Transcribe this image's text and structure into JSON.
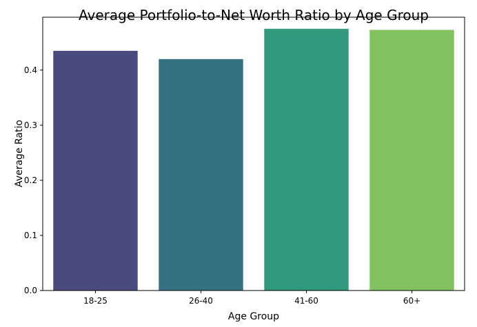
{
  "chart_data": {
    "type": "bar",
    "title": "Average Portfolio-to-Net Worth Ratio by Age Group",
    "xlabel": "Age Group",
    "ylabel": "Average Ratio",
    "categories": [
      "18-25",
      "26-40",
      "41-60",
      "60+"
    ],
    "values": [
      0.435,
      0.42,
      0.475,
      0.473
    ],
    "colors": [
      "#4a4a7e",
      "#357281",
      "#33997d",
      "#82c261"
    ],
    "ylim": [
      0,
      0.496
    ],
    "yticks": [
      0.0,
      0.1,
      0.2,
      0.3,
      0.4
    ],
    "ytick_labels": [
      "0.0",
      "0.1",
      "0.2",
      "0.3",
      "0.4"
    ],
    "grid": false,
    "legend": "none"
  }
}
